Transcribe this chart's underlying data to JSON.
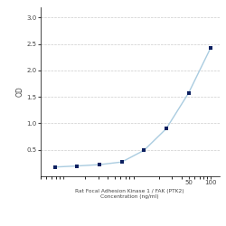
{
  "x": [
    0.78,
    1.56,
    3.13,
    6.25,
    12.5,
    25,
    50,
    100
  ],
  "y": [
    0.175,
    0.195,
    0.22,
    0.27,
    0.49,
    0.9,
    1.57,
    2.43
  ],
  "line_color": "#aacce0",
  "marker_color": "#0d2060",
  "marker_size": 3.5,
  "xlabel_line1": "Rat Focal Adhesion Kinase 1 / FAK (PTK2)",
  "xlabel_line2": "Concentration (ng/ml)",
  "xlabel_tick": "50",
  "ylabel": "OD",
  "xlim_log": [
    0.5,
    130
  ],
  "ylim": [
    0.0,
    3.2
  ],
  "yticks": [
    0.5,
    1.0,
    1.5,
    2.0,
    2.5,
    3.0
  ],
  "background_color": "#ffffff",
  "grid_color": "#cccccc",
  "font_color": "#444444"
}
